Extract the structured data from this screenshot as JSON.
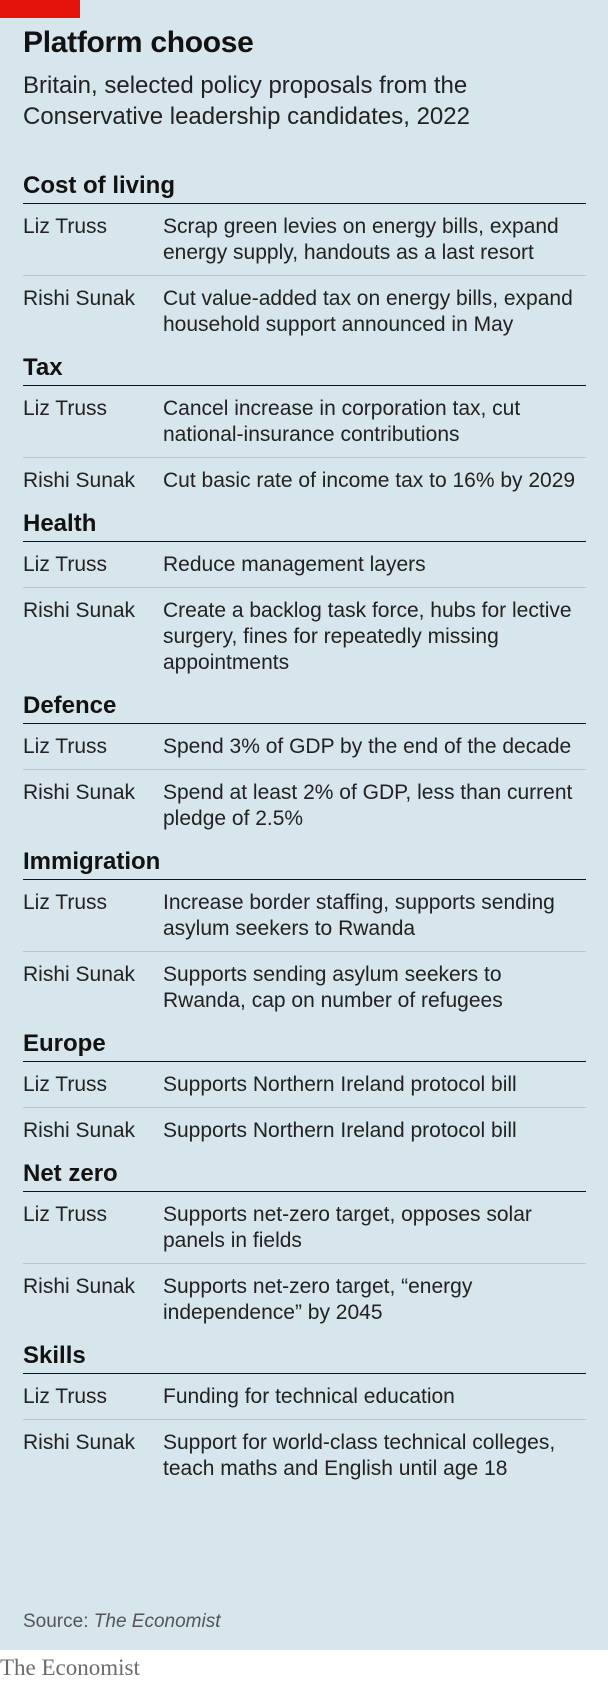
{
  "title": "Platform choose",
  "subtitle": "Britain, selected policy proposals from the Conservative leadership candidates, 2022",
  "sections": [
    {
      "heading": "Cost of living",
      "rows": [
        {
          "candidate": "Liz Truss",
          "proposal": "Scrap green levies on energy bills, expand energy supply, handouts as a last resort"
        },
        {
          "candidate": "Rishi Sunak",
          "proposal": "Cut value-added tax on energy bills, expand household support announced in May"
        }
      ]
    },
    {
      "heading": "Tax",
      "rows": [
        {
          "candidate": "Liz Truss",
          "proposal": "Cancel increase in corporation tax, cut national-insurance contributions"
        },
        {
          "candidate": "Rishi Sunak",
          "proposal": "Cut basic rate of income tax to 16% by 2029"
        }
      ]
    },
    {
      "heading": "Health",
      "rows": [
        {
          "candidate": "Liz Truss",
          "proposal": "Reduce management layers"
        },
        {
          "candidate": "Rishi Sunak",
          "proposal": "Create a backlog task force, hubs for lective surgery, fines for repeatedly missing appointments"
        }
      ]
    },
    {
      "heading": "Defence",
      "rows": [
        {
          "candidate": "Liz Truss",
          "proposal": "Spend 3% of GDP by the end of the decade"
        },
        {
          "candidate": "Rishi Sunak",
          "proposal": "Spend at least 2% of GDP, less than current pledge of 2.5%"
        }
      ]
    },
    {
      "heading": "Immigration",
      "rows": [
        {
          "candidate": "Liz Truss",
          "proposal": "Increase border staffing, supports sending asylum seekers to Rwanda"
        },
        {
          "candidate": "Rishi Sunak",
          "proposal": "Supports sending asylum seekers to Rwanda, cap on number of refugees"
        }
      ]
    },
    {
      "heading": "Europe",
      "rows": [
        {
          "candidate": "Liz Truss",
          "proposal": "Supports Northern Ireland protocol bill"
        },
        {
          "candidate": "Rishi Sunak",
          "proposal": "Supports Northern Ireland protocol bill"
        }
      ]
    },
    {
      "heading": "Net zero",
      "rows": [
        {
          "candidate": "Liz Truss",
          "proposal": "Supports net-zero target, opposes solar panels in fields"
        },
        {
          "candidate": "Rishi Sunak",
          "proposal": "Supports net-zero target, “energy independence” by 2045"
        }
      ]
    },
    {
      "heading": "Skills",
      "rows": [
        {
          "candidate": "Liz Truss",
          "proposal": "Funding for technical education"
        },
        {
          "candidate": "Rishi Sunak",
          "proposal": "Support for world-class technical colleges, teach maths and English until age 18"
        }
      ]
    }
  ],
  "source_label": "Source:",
  "source_name": "The Economist",
  "brand": "The Economist",
  "colors": {
    "panel": "#d7e5ec",
    "accent": "#e3120b"
  }
}
